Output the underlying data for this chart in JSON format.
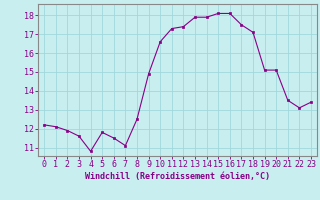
{
  "x": [
    0,
    1,
    2,
    3,
    4,
    5,
    6,
    7,
    8,
    9,
    10,
    11,
    12,
    13,
    14,
    15,
    16,
    17,
    18,
    19,
    20,
    21,
    22,
    23
  ],
  "y": [
    12.2,
    12.1,
    11.9,
    11.6,
    10.8,
    11.8,
    11.5,
    11.1,
    12.5,
    14.9,
    16.6,
    17.3,
    17.4,
    17.9,
    17.9,
    18.1,
    18.1,
    17.5,
    17.1,
    15.1,
    15.1,
    13.5,
    13.1,
    13.4
  ],
  "line_color": "#880088",
  "marker": "s",
  "marker_size": 2,
  "background_color": "#c8eef0",
  "grid_color": "#a0d8dc",
  "xlabel": "Windchill (Refroidissement éolien,°C)",
  "xlabel_color": "#880088",
  "tick_color": "#880088",
  "ylabel_ticks": [
    11,
    12,
    13,
    14,
    15,
    16,
    17,
    18
  ],
  "xlim": [
    -0.5,
    23.5
  ],
  "ylim": [
    10.55,
    18.6
  ],
  "spine_color": "#888888",
  "axis_label_fontsize": 6.0,
  "tick_fontsize": 6.0
}
